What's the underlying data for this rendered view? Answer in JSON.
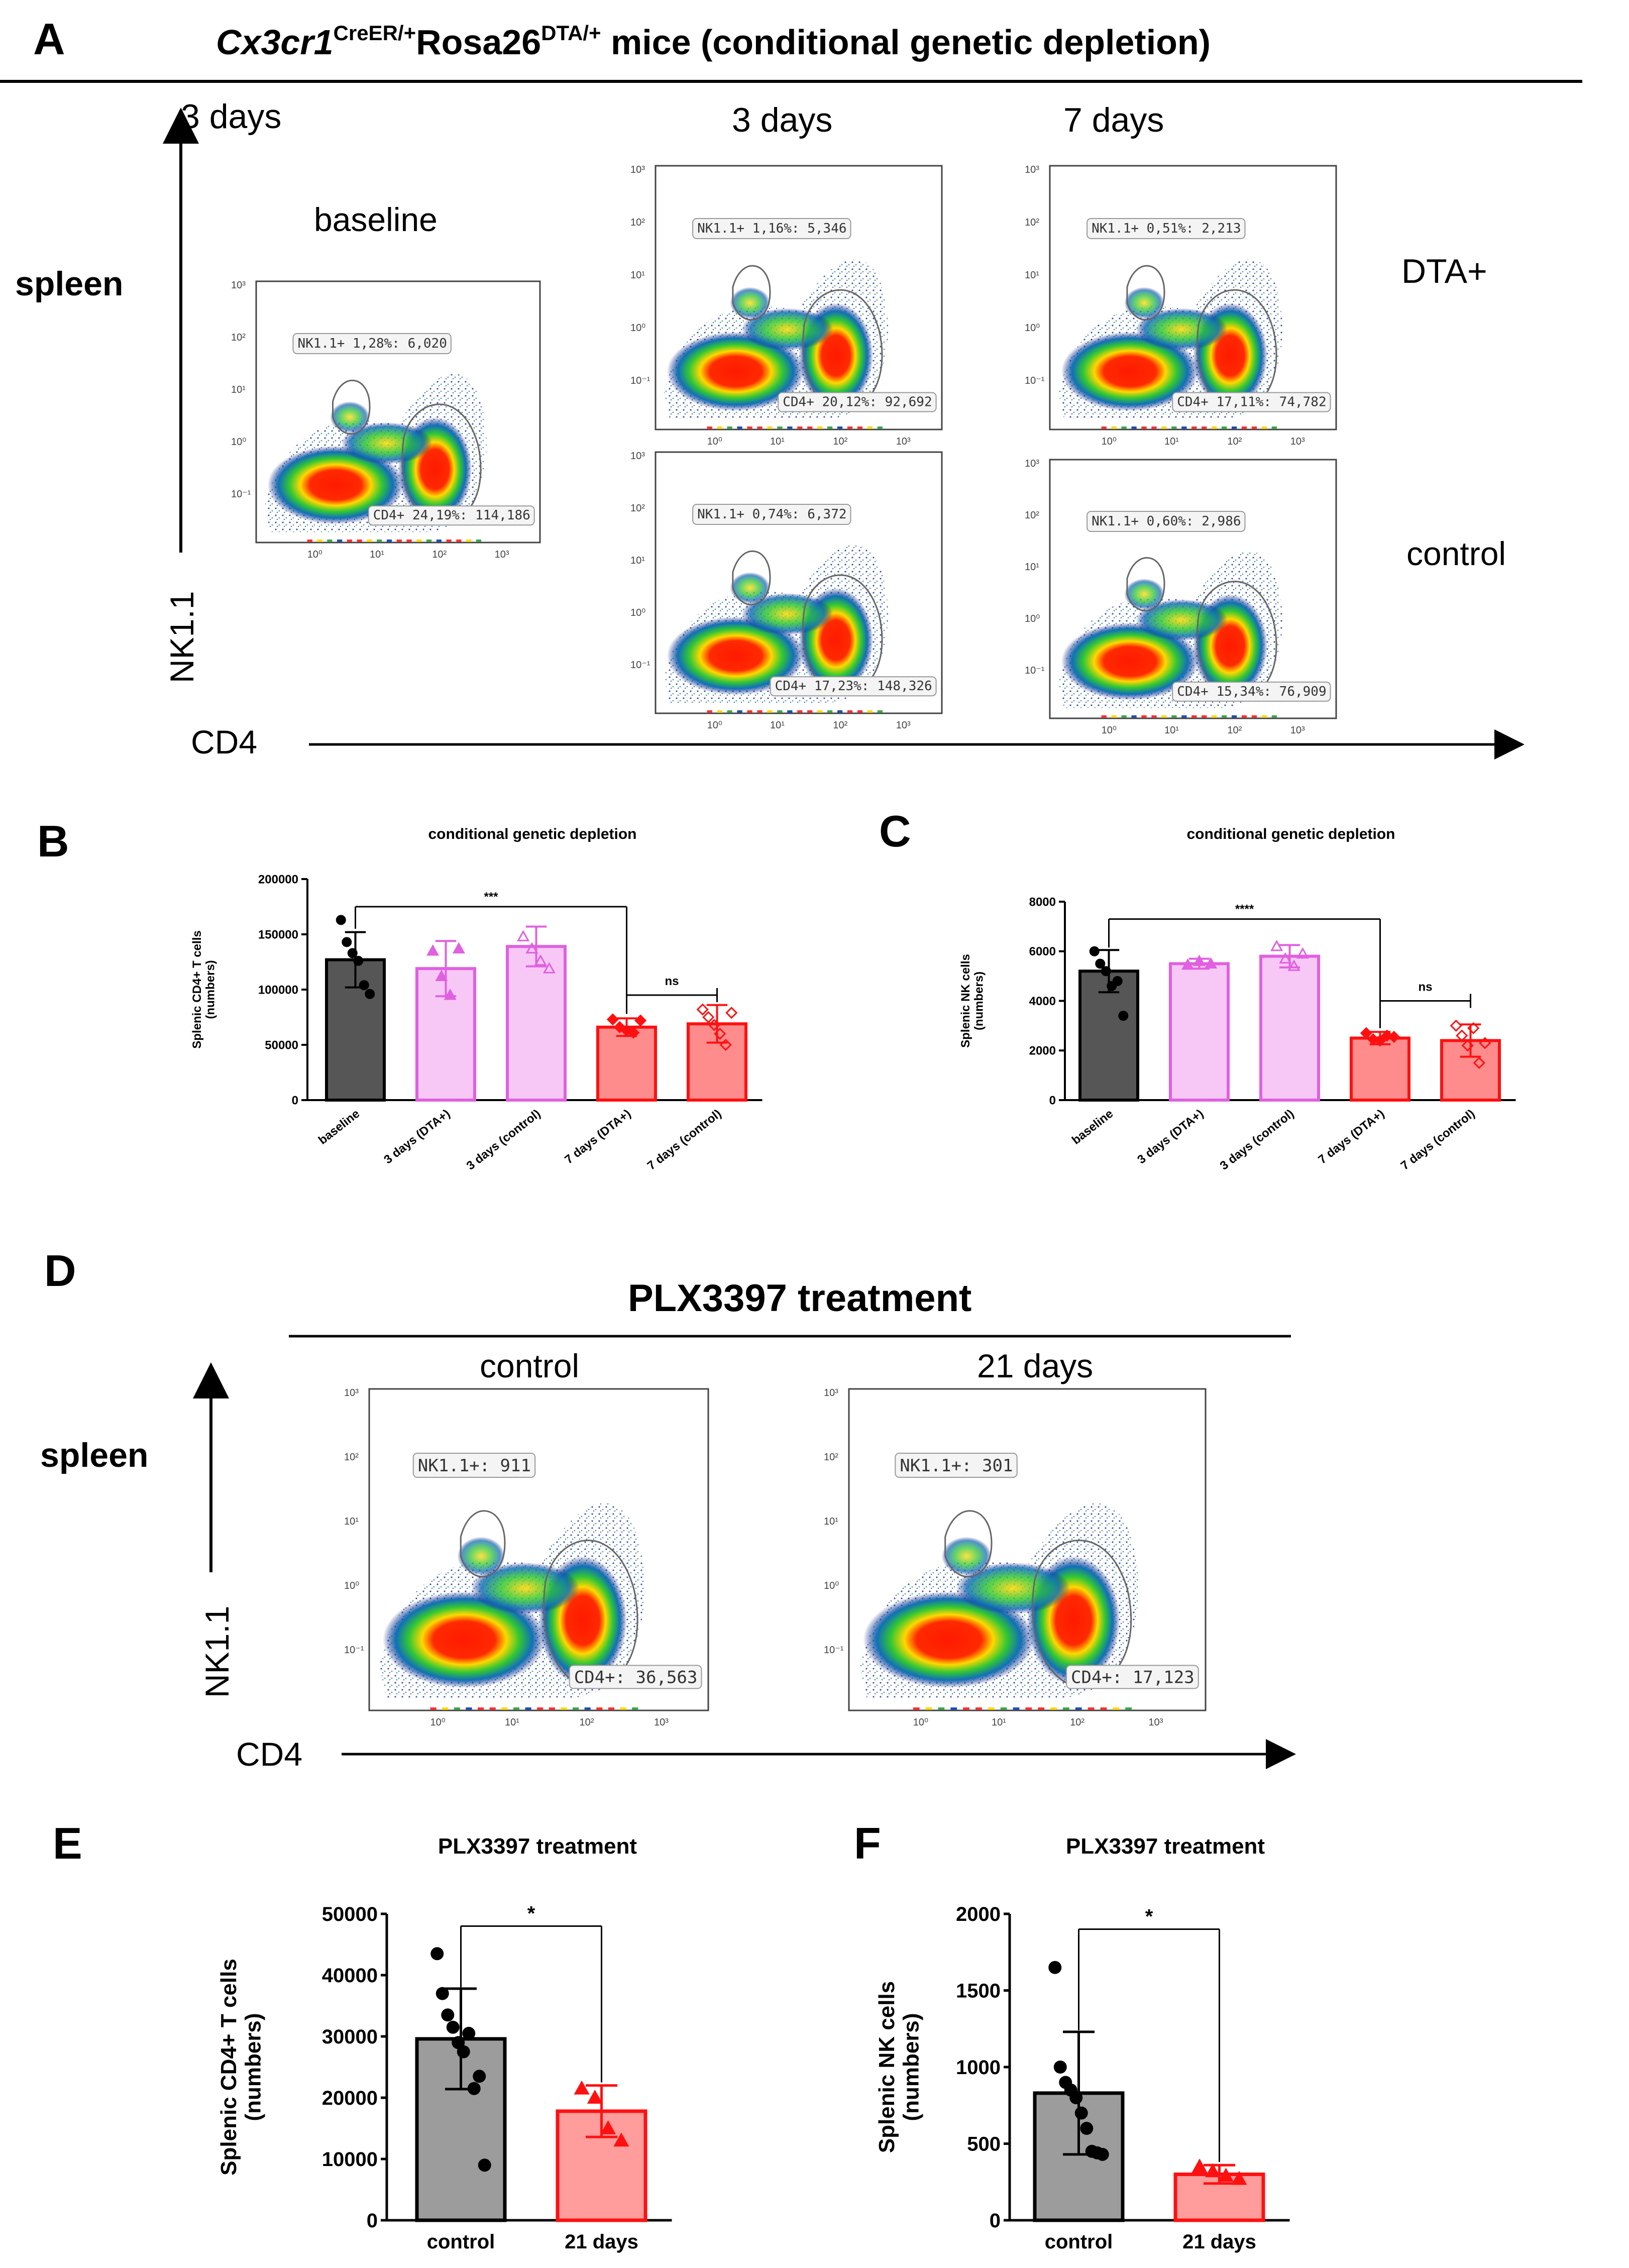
{
  "panel_a": {
    "letter": "A",
    "title_gene": "Cx3cr1",
    "title_sup1": "CreER/+",
    "title_mid": "Rosa26",
    "title_sup2": "DTA/+",
    "title_rest": " mice (conditional genetic depletion)",
    "tissue": "spleen",
    "col_3d": "3 days",
    "col_7d": "7 days",
    "baseline": "baseline",
    "row_dta": "DTA+",
    "row_control": "control",
    "y_axis": "NK1.1",
    "x_axis": "CD4",
    "plots": [
      {
        "id": "baseline",
        "nk": "NK1.1+ 1,28%: 6,020",
        "cd4": "CD4+ 24,19%: 114,186"
      },
      {
        "id": "dta3",
        "nk": "NK1.1+ 1,16%: 5,346",
        "cd4": "CD4+ 20,12%: 92,692"
      },
      {
        "id": "dta7",
        "nk": "NK1.1+ 0,51%: 2,213",
        "cd4": "CD4+ 17,11%: 74,782"
      },
      {
        "id": "ctl3",
        "nk": "NK1.1+ 0,74%: 6,372",
        "cd4": "CD4+ 17,23%: 148,326"
      },
      {
        "id": "ctl7",
        "nk": "NK1.1+ 0,60%: 2,986",
        "cd4": "CD4+ 15,34%: 76,909"
      }
    ],
    "ticks_y": [
      "10³",
      "10²",
      "10¹",
      "10⁰",
      "10⁻¹"
    ],
    "ticks_x": [
      "10⁰",
      "10¹",
      "10²",
      "10³"
    ],
    "colors": {
      "dta_label": "#ff0000"
    }
  },
  "panel_d": {
    "letter": "D",
    "title": "PLX3397 treatment",
    "tissue": "spleen",
    "col_control": "control",
    "col_21d": "21 days",
    "y_axis": "NK1.1",
    "x_axis": "CD4",
    "plots": [
      {
        "id": "control",
        "nk": "NK1.1+: 911",
        "cd4": "CD4+: 36,563"
      },
      {
        "id": "d21",
        "nk": "NK1.1+: 301",
        "cd4": "CD4+: 17,123"
      }
    ]
  },
  "chart_data": [
    {
      "id": "B",
      "type": "bar",
      "letter": "B",
      "title": "conditional genetic depletion",
      "ylabel_line1": "Splenic CD4+ T cells",
      "ylabel_line2": "(numbers)",
      "categories": [
        "baseline",
        "3 days (DTA+)",
        "3 days (control)",
        "7 days (DTA+)",
        "7 days (control)"
      ],
      "values": [
        127000,
        119000,
        139000,
        66000,
        69000
      ],
      "errors": [
        25000,
        25000,
        18000,
        8000,
        17000
      ],
      "points": [
        [
          163000,
          143000,
          133000,
          126000,
          104000,
          96000
        ],
        [
          135000,
          112000,
          95000,
          137000
        ],
        [
          148000,
          137000,
          126000,
          119000
        ],
        [
          73000,
          66000,
          63000,
          61000,
          72000
        ],
        [
          82000,
          75000,
          68000,
          60000,
          50000,
          79000
        ]
      ],
      "yticks": [
        "0",
        "50000",
        "100000",
        "150000",
        "200000"
      ],
      "ylim": [
        0,
        200000
      ],
      "sig_main": "***",
      "sig_sub": "ns"
    },
    {
      "id": "C",
      "type": "bar",
      "letter": "C",
      "title": "conditional genetic depletion",
      "ylabel_line1": "Splenic NK cells",
      "ylabel_line2": "(numbers)",
      "categories": [
        "baseline",
        "3 days (DTA+)",
        "3 days (control)",
        "7 days (DTA+)",
        "7 days (control)"
      ],
      "values": [
        5200,
        5500,
        5800,
        2500,
        2400
      ],
      "errors": [
        850,
        200,
        450,
        250,
        650
      ],
      "points": [
        [
          6000,
          5500,
          5200,
          4600,
          4800,
          3400
        ],
        [
          5450,
          5600,
          5500
        ],
        [
          6200,
          5700,
          5400,
          5900
        ],
        [
          2700,
          2450,
          2400,
          2600,
          2550
        ],
        [
          3000,
          2600,
          2200,
          2900,
          1500,
          2300
        ]
      ],
      "yticks": [
        "0",
        "2000",
        "4000",
        "6000",
        "8000"
      ],
      "ylim": [
        0,
        8000
      ],
      "sig_main": "****",
      "sig_sub": "ns"
    },
    {
      "id": "E",
      "type": "bar",
      "letter": "E",
      "title": "PLX3397 treatment",
      "ylabel_line1": "Splenic CD4+ T cells",
      "ylabel_line2": "(numbers)",
      "categories": [
        "control",
        "21 days"
      ],
      "values": [
        29600,
        17800
      ],
      "errors": [
        8200,
        4200
      ],
      "points": [
        [
          43500,
          37000,
          33500,
          31500,
          29000,
          27500,
          30500,
          21500,
          23500,
          9000
        ],
        [
          21500,
          20000,
          15000,
          13000
        ]
      ],
      "yticks": [
        "0",
        "10000",
        "20000",
        "30000",
        "40000",
        "50000"
      ],
      "ylim": [
        0,
        50000
      ],
      "sig_main": "*"
    },
    {
      "id": "F",
      "type": "bar",
      "letter": "F",
      "title": "PLX3397 treatment",
      "ylabel_line1": "Splenic NK cells",
      "ylabel_line2": "(numbers)",
      "categories": [
        "control",
        "21 days"
      ],
      "values": [
        830,
        300
      ],
      "errors": [
        400,
        60
      ],
      "points": [
        [
          1650,
          1000,
          900,
          850,
          800,
          700,
          600,
          450,
          440,
          430
        ],
        [
          350,
          320,
          290,
          270
        ]
      ],
      "yticks": [
        "0",
        "500",
        "1000",
        "1500",
        "2000"
      ],
      "ylim": [
        0,
        2000
      ],
      "sig_main": "*"
    }
  ]
}
